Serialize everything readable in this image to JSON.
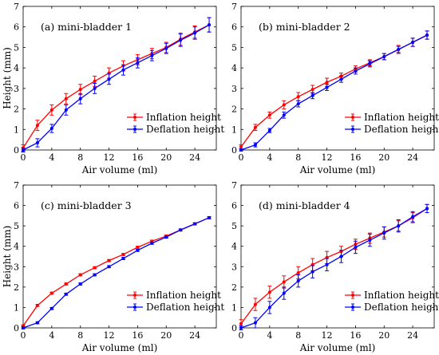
{
  "chart_data": [
    {
      "type": "line",
      "title": "(a) mini-bladder 1",
      "xlabel": "Air volume (ml)",
      "ylabel": "Height (mm)",
      "xlim": [
        0,
        27
      ],
      "ylim": [
        0,
        7
      ],
      "xticks": [
        0,
        4,
        8,
        12,
        16,
        20,
        24
      ],
      "yticks": [
        0,
        1,
        2,
        3,
        4,
        5,
        6,
        7
      ],
      "legend_position": "lower-right",
      "series": [
        {
          "name": "Inflation height",
          "color": "#ff0000",
          "x": [
            0,
            2,
            4,
            6,
            8,
            10,
            12,
            14,
            16,
            18,
            20,
            22,
            24,
            26
          ],
          "y": [
            0.1,
            1.2,
            1.95,
            2.5,
            2.95,
            3.35,
            3.75,
            4.1,
            4.4,
            4.7,
            5.0,
            5.4,
            5.75,
            6.1
          ],
          "err": [
            0.15,
            0.25,
            0.25,
            0.25,
            0.25,
            0.25,
            0.25,
            0.25,
            0.25,
            0.25,
            0.25,
            0.3,
            0.3,
            0.35
          ]
        },
        {
          "name": "Deflation height",
          "color": "#0000ff",
          "x": [
            0,
            2,
            4,
            6,
            8,
            10,
            12,
            14,
            16,
            18,
            20,
            22,
            24,
            26
          ],
          "y": [
            0.0,
            0.35,
            1.05,
            1.95,
            2.5,
            3.0,
            3.45,
            3.9,
            4.25,
            4.6,
            4.95,
            5.35,
            5.7,
            6.1
          ],
          "err": [
            0.1,
            0.2,
            0.2,
            0.25,
            0.25,
            0.25,
            0.25,
            0.25,
            0.25,
            0.25,
            0.25,
            0.3,
            0.3,
            0.35
          ]
        }
      ]
    },
    {
      "type": "line",
      "title": "(b) mini-bladder 2",
      "xlabel": "Air volume (ml)",
      "ylabel": "",
      "xlim": [
        0,
        27
      ],
      "ylim": [
        0,
        7
      ],
      "xticks": [
        0,
        4,
        8,
        12,
        16,
        20,
        24
      ],
      "yticks": [
        0,
        1,
        2,
        3,
        4,
        5,
        6,
        7
      ],
      "legend_position": "lower-right",
      "series": [
        {
          "name": "Inflation height",
          "color": "#ff0000",
          "x": [
            0,
            2,
            4,
            6,
            8,
            10,
            12,
            14,
            16,
            18,
            20,
            22,
            24,
            26
          ],
          "y": [
            0.15,
            1.1,
            1.7,
            2.2,
            2.6,
            2.95,
            3.3,
            3.6,
            3.95,
            4.25,
            4.55,
            4.9,
            5.25,
            5.6
          ],
          "err": [
            0.1,
            0.15,
            0.15,
            0.2,
            0.2,
            0.2,
            0.2,
            0.15,
            0.15,
            0.15,
            0.15,
            0.2,
            0.2,
            0.2
          ]
        },
        {
          "name": "Deflation height",
          "color": "#0000ff",
          "x": [
            0,
            2,
            4,
            6,
            8,
            10,
            12,
            14,
            16,
            18,
            20,
            22,
            24,
            26
          ],
          "y": [
            0.0,
            0.25,
            0.95,
            1.7,
            2.25,
            2.65,
            3.05,
            3.45,
            3.85,
            4.2,
            4.55,
            4.9,
            5.25,
            5.6
          ],
          "err": [
            0.05,
            0.1,
            0.1,
            0.15,
            0.15,
            0.15,
            0.15,
            0.15,
            0.15,
            0.15,
            0.15,
            0.15,
            0.2,
            0.2
          ]
        }
      ]
    },
    {
      "type": "line",
      "title": "(c) mini-bladder 3",
      "xlabel": "Air volume (ml)",
      "ylabel": "Height (mm)",
      "xlim": [
        0,
        27
      ],
      "ylim": [
        0,
        7
      ],
      "xticks": [
        0,
        4,
        8,
        12,
        16,
        20,
        24
      ],
      "yticks": [
        0,
        1,
        2,
        3,
        4,
        5,
        6,
        7
      ],
      "legend_position": "lower-right",
      "series": [
        {
          "name": "Inflation height",
          "color": "#ff0000",
          "x": [
            0,
            2,
            4,
            6,
            8,
            10,
            12,
            14,
            16,
            18,
            20,
            22,
            24,
            26
          ],
          "y": [
            0.1,
            1.1,
            1.7,
            2.15,
            2.6,
            2.95,
            3.3,
            3.6,
            3.95,
            4.25,
            4.5,
            4.8,
            5.1,
            5.4
          ],
          "err": [
            0.05,
            0.05,
            0.05,
            0.05,
            0.05,
            0.05,
            0.05,
            0.05,
            0.05,
            0.05,
            0.05,
            0.05,
            0.05,
            0.05
          ]
        },
        {
          "name": "Deflation height",
          "color": "#0000ff",
          "x": [
            0,
            2,
            4,
            6,
            8,
            10,
            12,
            14,
            16,
            18,
            20,
            22,
            24,
            26
          ],
          "y": [
            0.0,
            0.25,
            0.95,
            1.65,
            2.15,
            2.6,
            3.0,
            3.4,
            3.8,
            4.15,
            4.45,
            4.8,
            5.1,
            5.4
          ],
          "err": [
            0.05,
            0.05,
            0.05,
            0.05,
            0.05,
            0.05,
            0.05,
            0.05,
            0.05,
            0.05,
            0.05,
            0.05,
            0.05,
            0.05
          ]
        }
      ]
    },
    {
      "type": "line",
      "title": "(d) mini-bladder 4",
      "xlabel": "Air volume (ml)",
      "ylabel": "",
      "xlim": [
        0,
        27
      ],
      "ylim": [
        0,
        7
      ],
      "xticks": [
        0,
        4,
        8,
        12,
        16,
        20,
        24
      ],
      "yticks": [
        0,
        1,
        2,
        3,
        4,
        5,
        6,
        7
      ],
      "legend_position": "lower-right",
      "series": [
        {
          "name": "Inflation height",
          "color": "#ff0000",
          "x": [
            0,
            2,
            4,
            6,
            8,
            10,
            12,
            14,
            16,
            18,
            20,
            22,
            24,
            26
          ],
          "y": [
            0.2,
            1.15,
            1.75,
            2.25,
            2.7,
            3.1,
            3.45,
            3.75,
            4.1,
            4.4,
            4.7,
            5.0,
            5.4,
            5.85
          ],
          "err": [
            0.2,
            0.3,
            0.3,
            0.3,
            0.3,
            0.3,
            0.3,
            0.25,
            0.25,
            0.25,
            0.25,
            0.25,
            0.25,
            0.2
          ]
        },
        {
          "name": "Deflation height",
          "color": "#0000ff",
          "x": [
            0,
            2,
            4,
            6,
            8,
            10,
            12,
            14,
            16,
            18,
            20,
            22,
            24,
            26
          ],
          "y": [
            0.0,
            0.25,
            1.0,
            1.7,
            2.3,
            2.75,
            3.1,
            3.5,
            3.95,
            4.3,
            4.65,
            5.0,
            5.45,
            5.85
          ],
          "err": [
            0.1,
            0.25,
            0.3,
            0.3,
            0.3,
            0.3,
            0.3,
            0.3,
            0.3,
            0.3,
            0.3,
            0.3,
            0.25,
            0.2
          ]
        }
      ]
    }
  ]
}
